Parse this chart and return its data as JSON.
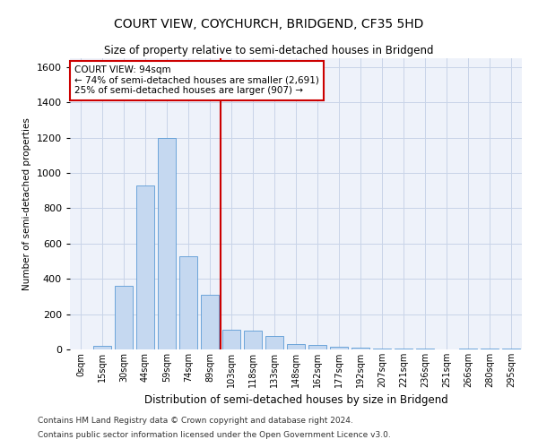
{
  "title": "COURT VIEW, COYCHURCH, BRIDGEND, CF35 5HD",
  "subtitle": "Size of property relative to semi-detached houses in Bridgend",
  "xlabel": "Distribution of semi-detached houses by size in Bridgend",
  "ylabel": "Number of semi-detached properties",
  "footnote1": "Contains HM Land Registry data © Crown copyright and database right 2024.",
  "footnote2": "Contains public sector information licensed under the Open Government Licence v3.0.",
  "annotation_title": "COURT VIEW: 94sqm",
  "annotation_line1": "← 74% of semi-detached houses are smaller (2,691)",
  "annotation_line2": "25% of semi-detached houses are larger (907) →",
  "bar_color": "#c5d8f0",
  "bar_edge_color": "#5b9bd5",
  "vline_color": "#cc0000",
  "annotation_box_color": "#cc0000",
  "grid_color": "#c8d4e8",
  "background_color": "#eef2fa",
  "categories": [
    "0sqm",
    "15sqm",
    "30sqm",
    "44sqm",
    "59sqm",
    "74sqm",
    "89sqm",
    "103sqm",
    "118sqm",
    "133sqm",
    "148sqm",
    "162sqm",
    "177sqm",
    "192sqm",
    "207sqm",
    "221sqm",
    "236sqm",
    "251sqm",
    "266sqm",
    "280sqm",
    "295sqm"
  ],
  "values": [
    0,
    20,
    360,
    930,
    1200,
    530,
    310,
    110,
    105,
    75,
    30,
    25,
    15,
    10,
    5,
    5,
    5,
    0,
    5,
    5,
    5
  ],
  "vline_x_index": 7,
  "ylim": [
    0,
    1650
  ],
  "yticks": [
    0,
    200,
    400,
    600,
    800,
    1000,
    1200,
    1400,
    1600
  ]
}
